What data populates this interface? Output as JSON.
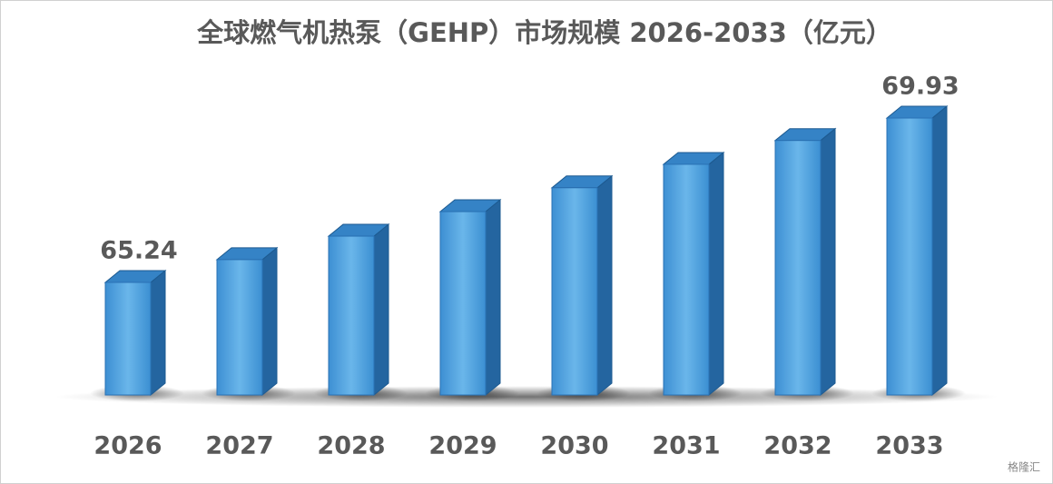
{
  "chart_data": {
    "type": "bar3d",
    "title": "全球燃气机热泵（GEHP）市场规模 2026-2033（亿元）",
    "categories": [
      "2026",
      "2027",
      "2028",
      "2029",
      "2030",
      "2031",
      "2032",
      "2033"
    ],
    "values": [
      65.24,
      65.89,
      66.56,
      67.26,
      67.94,
      68.61,
      69.29,
      69.93
    ],
    "color": "#4a9fdc",
    "watermark": "格隆汇"
  }
}
